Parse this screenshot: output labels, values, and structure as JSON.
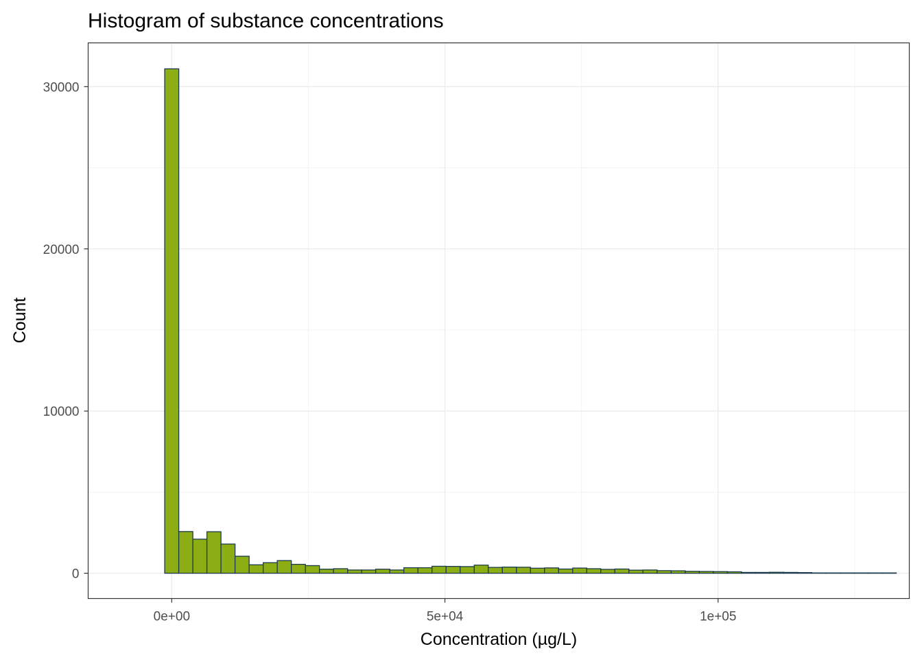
{
  "chart_data": {
    "type": "histogram",
    "title": "Histogram of substance concentrations",
    "xlabel": "Concentration (µg/L)",
    "ylabel": "Count",
    "x_ticks": [
      {
        "value": 0,
        "label": "0e+00"
      },
      {
        "value": 50000,
        "label": "5e+04"
      },
      {
        "value": 100000,
        "label": "1e+05"
      }
    ],
    "y_ticks": [
      {
        "value": 0,
        "label": "0"
      },
      {
        "value": 10000,
        "label": "10000"
      },
      {
        "value": 20000,
        "label": "20000"
      },
      {
        "value": 30000,
        "label": "30000"
      }
    ],
    "xlim": [
      -15300,
      135000
    ],
    "ylim": [
      -1560,
      32700
    ],
    "bin_width": 2575,
    "bin_start": -1287.5,
    "counts": [
      31100,
      2570,
      2100,
      2560,
      1800,
      1050,
      520,
      650,
      780,
      550,
      470,
      250,
      280,
      200,
      200,
      250,
      200,
      340,
      340,
      430,
      420,
      410,
      500,
      360,
      380,
      370,
      310,
      330,
      260,
      320,
      280,
      240,
      260,
      190,
      200,
      160,
      150,
      120,
      110,
      100,
      90,
      50,
      50,
      60,
      50,
      40,
      20,
      20,
      20,
      20,
      20,
      20
    ],
    "grid": true,
    "legend": "none",
    "colors": {
      "bar_fill": "#8cae14",
      "bar_stroke": "#1b3a4b",
      "grid_major": "#ebebeb",
      "grid_minor": "#f3f3f3",
      "panel_border": "#333333",
      "tick_text": "#4d4d4d"
    }
  }
}
